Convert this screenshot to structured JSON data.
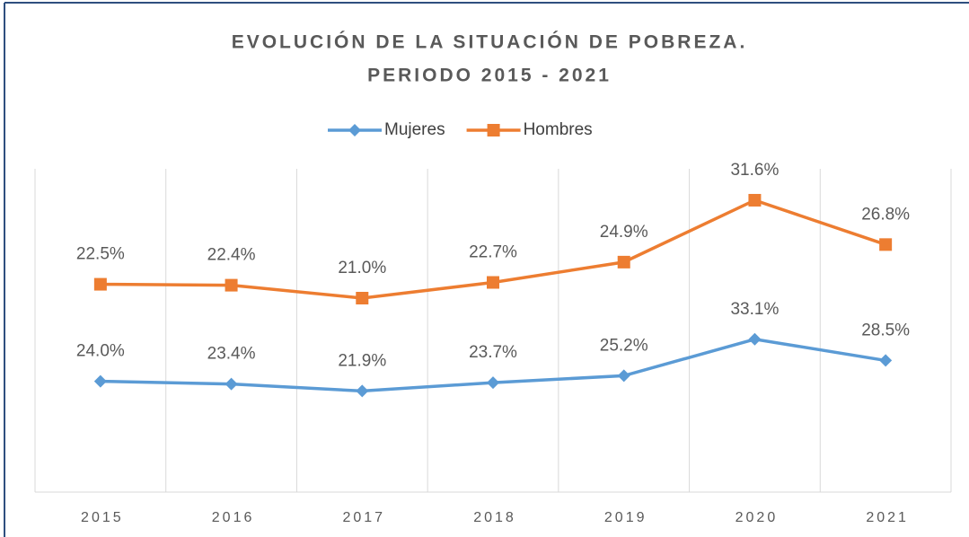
{
  "chart_data": {
    "type": "line",
    "title": [
      "EVOLUCIÓN DE LA SITUACIÓN DE POBREZA.",
      "PERIODO 2015 - 2021"
    ],
    "categories": [
      "2015",
      "2016",
      "2017",
      "2018",
      "2019",
      "2020",
      "2021"
    ],
    "series": [
      {
        "name": "Mujeres",
        "color": "#5b9bd5",
        "marker": "diamond",
        "values": [
          24.0,
          23.4,
          21.9,
          23.7,
          25.2,
          33.1,
          28.5
        ],
        "value_labels": [
          "24.0%",
          "23.4%",
          "21.9%",
          "23.7%",
          "25.2%",
          "33.1%",
          "28.5%"
        ]
      },
      {
        "name": "Hombres",
        "color": "#ed7d31",
        "marker": "square",
        "axis": "y2",
        "values": [
          22.5,
          22.4,
          21.0,
          22.7,
          24.9,
          31.6,
          26.8
        ],
        "value_labels": [
          "22.5%",
          "22.4%",
          "21.0%",
          "22.7%",
          "24.9%",
          "31.6%",
          "26.8%"
        ]
      }
    ],
    "ylim": [
      0,
      70
    ],
    "y2lim": [
      0,
      35
    ],
    "legend": "top"
  }
}
